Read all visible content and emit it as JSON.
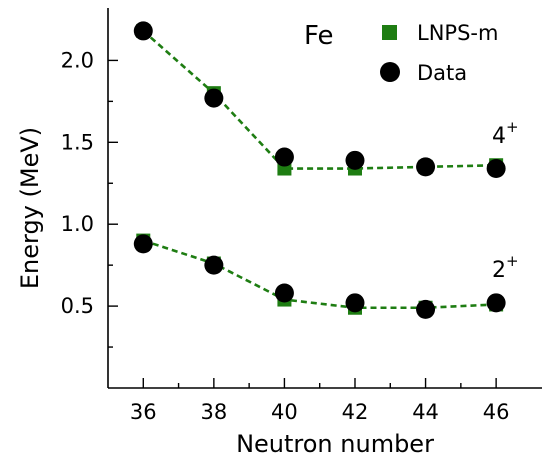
{
  "chart_data": {
    "type": "scatter",
    "element_label": "Fe",
    "xlabel": "Neutron number",
    "ylabel": "Energy (MeV)",
    "x": [
      36,
      38,
      40,
      42,
      44,
      46
    ],
    "x_ticks": [
      "36",
      "38",
      "40",
      "42",
      "44",
      "46"
    ],
    "y_ticks": [
      "0.5",
      "1.0",
      "1.5",
      "2.0"
    ],
    "y_tick_values": [
      0.5,
      1.0,
      1.5,
      2.0
    ],
    "xlim": [
      35,
      47.3
    ],
    "ylim": [
      0.0,
      2.32
    ],
    "legend_placement": "top-right",
    "colors": {
      "model": "#1e7d12",
      "data": "#000000"
    },
    "series": [
      {
        "name": "LNPS-m",
        "marker": "square",
        "line": "dashed",
        "state": "4+",
        "values": [
          2.18,
          1.8,
          1.34,
          1.34,
          1.35,
          1.36
        ]
      },
      {
        "name": "LNPS-m",
        "marker": "square",
        "line": "dashed",
        "state": "2+",
        "values": [
          0.9,
          0.76,
          0.54,
          0.49,
          0.49,
          0.51
        ]
      },
      {
        "name": "Data",
        "marker": "circle",
        "state": "4+",
        "values": [
          2.18,
          1.77,
          1.41,
          1.39,
          1.35,
          1.34
        ]
      },
      {
        "name": "Data",
        "marker": "circle",
        "state": "2+",
        "values": [
          0.88,
          0.75,
          0.58,
          0.52,
          0.48,
          0.52
        ]
      }
    ],
    "legend": [
      {
        "label": "LNPS-m",
        "marker": "square"
      },
      {
        "label": "Data",
        "marker": "circle"
      }
    ],
    "state_labels": [
      {
        "base": "4",
        "sup": "+",
        "near_series": 0
      },
      {
        "base": "2",
        "sup": "+",
        "near_series": 1
      }
    ]
  }
}
